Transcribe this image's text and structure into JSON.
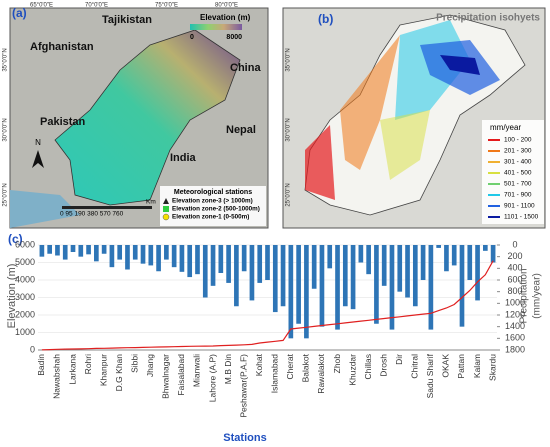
{
  "map_a": {
    "panel": "(a)",
    "countries": [
      "Tajikistan",
      "Afghanistan",
      "China",
      "Pakistan",
      "Nepal",
      "India"
    ],
    "elevation_legend": {
      "title": "Elevation (m)",
      "min": "0",
      "max": "8000"
    },
    "lon_labels": [
      "65°0'0\"E",
      "70°0'0\"E",
      "75°0'0\"E",
      "80°0'0\"E"
    ],
    "lat_labels": [
      "35°0'0\"N",
      "30°0'0\"N",
      "25°0'0\"N"
    ],
    "north": "N",
    "scale": "0 95 190 380 570 760",
    "scale_unit": "Km",
    "stations_title": "Meteorological stations",
    "stations": [
      {
        "label": "Elevation zone-3 (> 1000m)",
        "color": "#222222"
      },
      {
        "label": "Elevation zone-2 (500-1000m)",
        "color": "#2ecc40"
      },
      {
        "label": "Elevation zone-1 (0-500m)",
        "color": "#f5e000"
      }
    ]
  },
  "map_b": {
    "panel": "(b)",
    "title": "Precipitation isohyets",
    "lat_labels": [
      "35°0'0\"N",
      "30°0'0\"N",
      "25°0'0\"N"
    ],
    "legend_title": "mm/year",
    "legend": [
      {
        "label": "100 - 200",
        "color": "#e41a1c"
      },
      {
        "label": "201 - 300",
        "color": "#f07818"
      },
      {
        "label": "301 - 400",
        "color": "#f0b030"
      },
      {
        "label": "401 - 500",
        "color": "#d8e040"
      },
      {
        "label": "501 - 700",
        "color": "#70d070"
      },
      {
        "label": "701 - 900",
        "color": "#20c8e8"
      },
      {
        "label": "901 - 1100",
        "color": "#2060e0"
      },
      {
        "label": "1101 - 1500",
        "color": "#0a1aa0"
      }
    ]
  },
  "chart_data": {
    "type": "bar-line",
    "panel": "(c)",
    "xlabel": "Stations",
    "ylabel": "Elevation (m)",
    "y2label": [
      "Precipitation",
      "(mm/year)"
    ],
    "categories": [
      "Badin",
      null,
      "Nawabshah",
      null,
      "Larkana",
      null,
      "Rohri",
      null,
      "Khanpur",
      null,
      "D.G Khan",
      null,
      "Sibbi",
      null,
      "Jhang",
      null,
      "Bhwalnagar",
      null,
      "Faisalabad",
      null,
      "Mianwali",
      null,
      "Lahore (A.P)",
      null,
      "M.B Din",
      null,
      "Peshawar(P.A.F)",
      null,
      "Kohat",
      null,
      "Islamabad",
      null,
      "Cherat",
      null,
      "Balakot",
      null,
      "Rawalakot",
      null,
      "Zhob",
      null,
      "Khuzdar",
      null,
      "Chillas",
      null,
      "Drosh",
      null,
      "Dir",
      null,
      "Chitral",
      null,
      "Sadu Sharif",
      null,
      "OKAK",
      null,
      "Pattan",
      null,
      "Kalam",
      null,
      "Skardu"
    ],
    "series": [
      {
        "name": "Precipitation",
        "type": "bar",
        "axis": "y2",
        "color": "#2e75b6",
        "values": [
          200,
          150,
          180,
          250,
          120,
          200,
          160,
          280,
          150,
          380,
          250,
          420,
          250,
          320,
          350,
          450,
          250,
          380,
          460,
          550,
          500,
          900,
          700,
          480,
          650,
          1050,
          450,
          950,
          650,
          600,
          1150,
          1050,
          1600,
          1350,
          1600,
          750,
          1400,
          400,
          1450,
          1050,
          1100,
          300,
          500,
          1350,
          700,
          1450,
          800,
          900,
          1050,
          600,
          1450,
          50,
          450,
          350,
          1400,
          600,
          950,
          100,
          300
        ]
      },
      {
        "name": "Elevation",
        "type": "line",
        "axis": "y",
        "color": "#e02020",
        "values": [
          10,
          20,
          40,
          50,
          55,
          65,
          75,
          90,
          100,
          110,
          120,
          130,
          140,
          150,
          160,
          170,
          180,
          190,
          200,
          210,
          215,
          220,
          230,
          250,
          260,
          280,
          300,
          320,
          400,
          450,
          500,
          550,
          1200,
          1250,
          1300,
          1350,
          1400,
          1450,
          1500,
          1550,
          1600,
          1650,
          1700,
          1750,
          1800,
          1850,
          1900,
          1950,
          2000,
          2050,
          2100,
          2250,
          2400,
          2600,
          3000,
          3400,
          3900,
          4300,
          5100
        ]
      }
    ],
    "ylim": [
      0,
      6000
    ],
    "yticks": [
      0,
      1000,
      2000,
      3000,
      4000,
      5000,
      6000
    ],
    "y2lim": [
      0,
      1800
    ],
    "y2_inverted": true,
    "y2ticks": [
      0,
      200,
      400,
      600,
      800,
      1000,
      1200,
      1400,
      1600,
      1800
    ],
    "grid": true
  }
}
